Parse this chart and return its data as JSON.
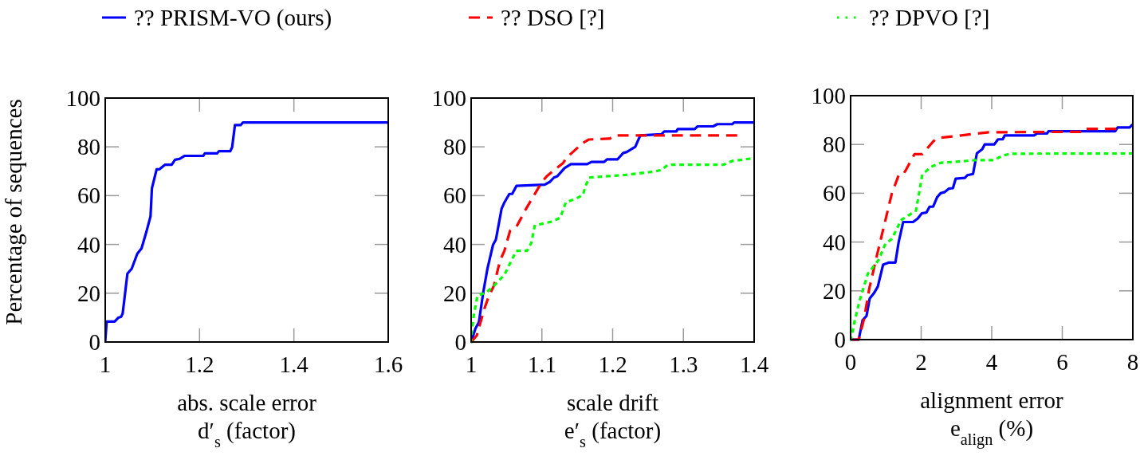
{
  "chart_data": [
    {
      "type": "line",
      "ylabel": "Percentage of sequences",
      "xlabel": "abs. scale error\nd′$_{s}$ (factor)",
      "xlim": [
        1,
        1.6
      ],
      "xticks": [
        1,
        1.2,
        1.4,
        1.6
      ],
      "ylim": [
        0,
        100
      ],
      "yticks": [
        0,
        20,
        40,
        60,
        80,
        100
      ],
      "grid": false,
      "legend": false,
      "series": [
        {
          "color": "#0000ff",
          "line_style": "solid",
          "x": [
            1.0,
            1.003,
            1.02,
            1.028,
            1.034,
            1.037,
            1.047,
            1.056,
            1.068,
            1.077,
            1.087,
            1.096,
            1.099,
            1.109,
            1.115,
            1.127,
            1.141,
            1.148,
            1.158,
            1.168,
            1.208,
            1.211,
            1.237,
            1.241,
            1.265,
            1.269,
            1.275,
            1.287,
            1.292,
            1.6
          ],
          "values": [
            0,
            8.4,
            8.4,
            10,
            10.4,
            11.7,
            28,
            30,
            36.2,
            38.4,
            45,
            51.5,
            63,
            70.8,
            70.8,
            72.7,
            72.7,
            74.7,
            75.1,
            76.3,
            76.3,
            77.3,
            77.3,
            78.2,
            78.2,
            79.8,
            88.9,
            88.9,
            90,
            90
          ]
        }
      ]
    },
    {
      "type": "line",
      "xlabel": "scale drift\ne′$_{s}$ (factor)",
      "xlim": [
        1,
        1.4
      ],
      "xticks": [
        1,
        1.1,
        1.2,
        1.3,
        1.4
      ],
      "ylim": [
        0,
        100
      ],
      "yticks": [
        0,
        20,
        40,
        60,
        80,
        100
      ],
      "grid": false,
      "legend": "top",
      "series": [
        {
          "name": "?? PRISM-VO (ours)",
          "color": "#0000ff",
          "line_style": "solid",
          "x": [
            1.0,
            1.006,
            1.011,
            1.017,
            1.023,
            1.031,
            1.035,
            1.043,
            1.047,
            1.054,
            1.058,
            1.064,
            1.104,
            1.111,
            1.117,
            1.122,
            1.132,
            1.141,
            1.164,
            1.17,
            1.188,
            1.192,
            1.207,
            1.215,
            1.22,
            1.232,
            1.239,
            1.269,
            1.273,
            1.29,
            1.292,
            1.316,
            1.32,
            1.342,
            1.348,
            1.369,
            1.372,
            1.4
          ],
          "values": [
            0,
            5.5,
            8.2,
            20.2,
            30,
            39.9,
            42,
            54.6,
            57.2,
            60.7,
            60.7,
            64,
            64.5,
            65.6,
            67.4,
            68,
            71.3,
            72.9,
            72.9,
            73.8,
            73.8,
            74.9,
            74.9,
            77.5,
            77.9,
            80,
            84.7,
            85.2,
            86.3,
            86.3,
            87.3,
            87.3,
            88.4,
            88.4,
            89.3,
            89.3,
            90,
            90
          ]
        },
        {
          "name": "?? DSO [?]",
          "color": "#ff0000",
          "line_style": "dashed",
          "x": [
            1.0,
            1.008,
            1.019,
            1.024,
            1.032,
            1.041,
            1.047,
            1.055,
            1.064,
            1.077,
            1.1,
            1.107,
            1.13,
            1.135,
            1.158,
            1.166,
            1.196,
            1.203,
            1.376
          ],
          "values": [
            0,
            2.7,
            13.9,
            18,
            23,
            33.5,
            37.4,
            45.6,
            47.2,
            54.3,
            65.6,
            68,
            73.4,
            75.6,
            81.6,
            83,
            83.4,
            84.7,
            84.7
          ]
        },
        {
          "name": "?? DPVO [?]",
          "color": "#00ff00",
          "line_style": "dotted",
          "x": [
            1.0,
            1.001,
            1.004,
            1.009,
            1.021,
            1.032,
            1.047,
            1.057,
            1.064,
            1.079,
            1.085,
            1.09,
            1.115,
            1.126,
            1.134,
            1.148,
            1.158,
            1.162,
            1.167,
            1.218,
            1.257,
            1.269,
            1.278,
            1.357,
            1.369,
            1.393
          ],
          "values": [
            0,
            4.9,
            11.5,
            19.1,
            20.2,
            23,
            27.5,
            33.5,
            37.4,
            37.4,
            40.6,
            47.8,
            49.4,
            51,
            57.4,
            58.7,
            60.3,
            64.2,
            67.4,
            68.5,
            69.8,
            70.5,
            72.7,
            72.7,
            74.2,
            75.1
          ]
        }
      ]
    },
    {
      "type": "line",
      "xlabel": "alignment error\ne$_{align}$ (%)",
      "xlim": [
        0,
        8
      ],
      "xticks": [
        0,
        2,
        4,
        6,
        8
      ],
      "ylim": [
        0,
        100
      ],
      "yticks": [
        0,
        20,
        40,
        60,
        80,
        100
      ],
      "grid": false,
      "legend": false,
      "series": [
        {
          "color": "#0000ff",
          "line_style": "solid",
          "x": [
            0,
            0.23,
            0.34,
            0.45,
            0.54,
            0.66,
            0.77,
            0.92,
            1.09,
            1.27,
            1.36,
            1.49,
            1.77,
            1.9,
            2.02,
            2.15,
            2.24,
            2.34,
            2.45,
            2.55,
            2.67,
            2.79,
            2.9,
            2.98,
            3.24,
            3.31,
            3.47,
            3.58,
            3.73,
            3.8,
            4.07,
            4.18,
            4.31,
            4.37,
            5.2,
            5.29,
            5.57,
            5.61,
            7.5,
            7.57,
            7.91,
            8
          ],
          "values": [
            0,
            0,
            8,
            9.7,
            16.8,
            19,
            21.7,
            30.7,
            31.6,
            31.6,
            39.8,
            48.2,
            48.2,
            49.6,
            51.8,
            52.1,
            54.5,
            54.5,
            58.3,
            60,
            60.5,
            61.9,
            62.1,
            66,
            66.3,
            67.4,
            67.9,
            76.4,
            78,
            80,
            80,
            82.1,
            82.1,
            83.7,
            83.7,
            84.5,
            84.5,
            85.4,
            85.4,
            87,
            87,
            88.3
          ]
        },
        {
          "color": "#ff0000",
          "line_style": "dashed",
          "x": [
            0,
            0.23,
            0.38,
            0.53,
            0.75,
            0.94,
            1.17,
            1.36,
            1.47,
            1.57,
            1.81,
            2.03,
            2.34,
            2.45,
            3.92,
            6.63,
            6.67,
            7.53
          ],
          "values": [
            0,
            0,
            8.5,
            21,
            34.8,
            46.2,
            60,
            67.3,
            67.3,
            69.6,
            76,
            76,
            81.2,
            82.6,
            85,
            85.2,
            86.4,
            86.4
          ]
        },
        {
          "color": "#00ff00",
          "line_style": "dotted",
          "x": [
            0,
            0.06,
            0.11,
            0.26,
            0.49,
            0.79,
            0.98,
            1.17,
            1.43,
            1.85,
            1.92,
            2.03,
            2.26,
            2.56,
            3.09,
            3.54,
            4.07,
            4.29,
            4.52,
            7.98
          ],
          "values": [
            0,
            3.6,
            7.4,
            16.2,
            27.1,
            32.6,
            39.1,
            41.3,
            49,
            52.8,
            58.3,
            67.5,
            70.7,
            72.5,
            73,
            73.6,
            73.6,
            75.3,
            76.2,
            76.3
          ]
        }
      ]
    }
  ]
}
